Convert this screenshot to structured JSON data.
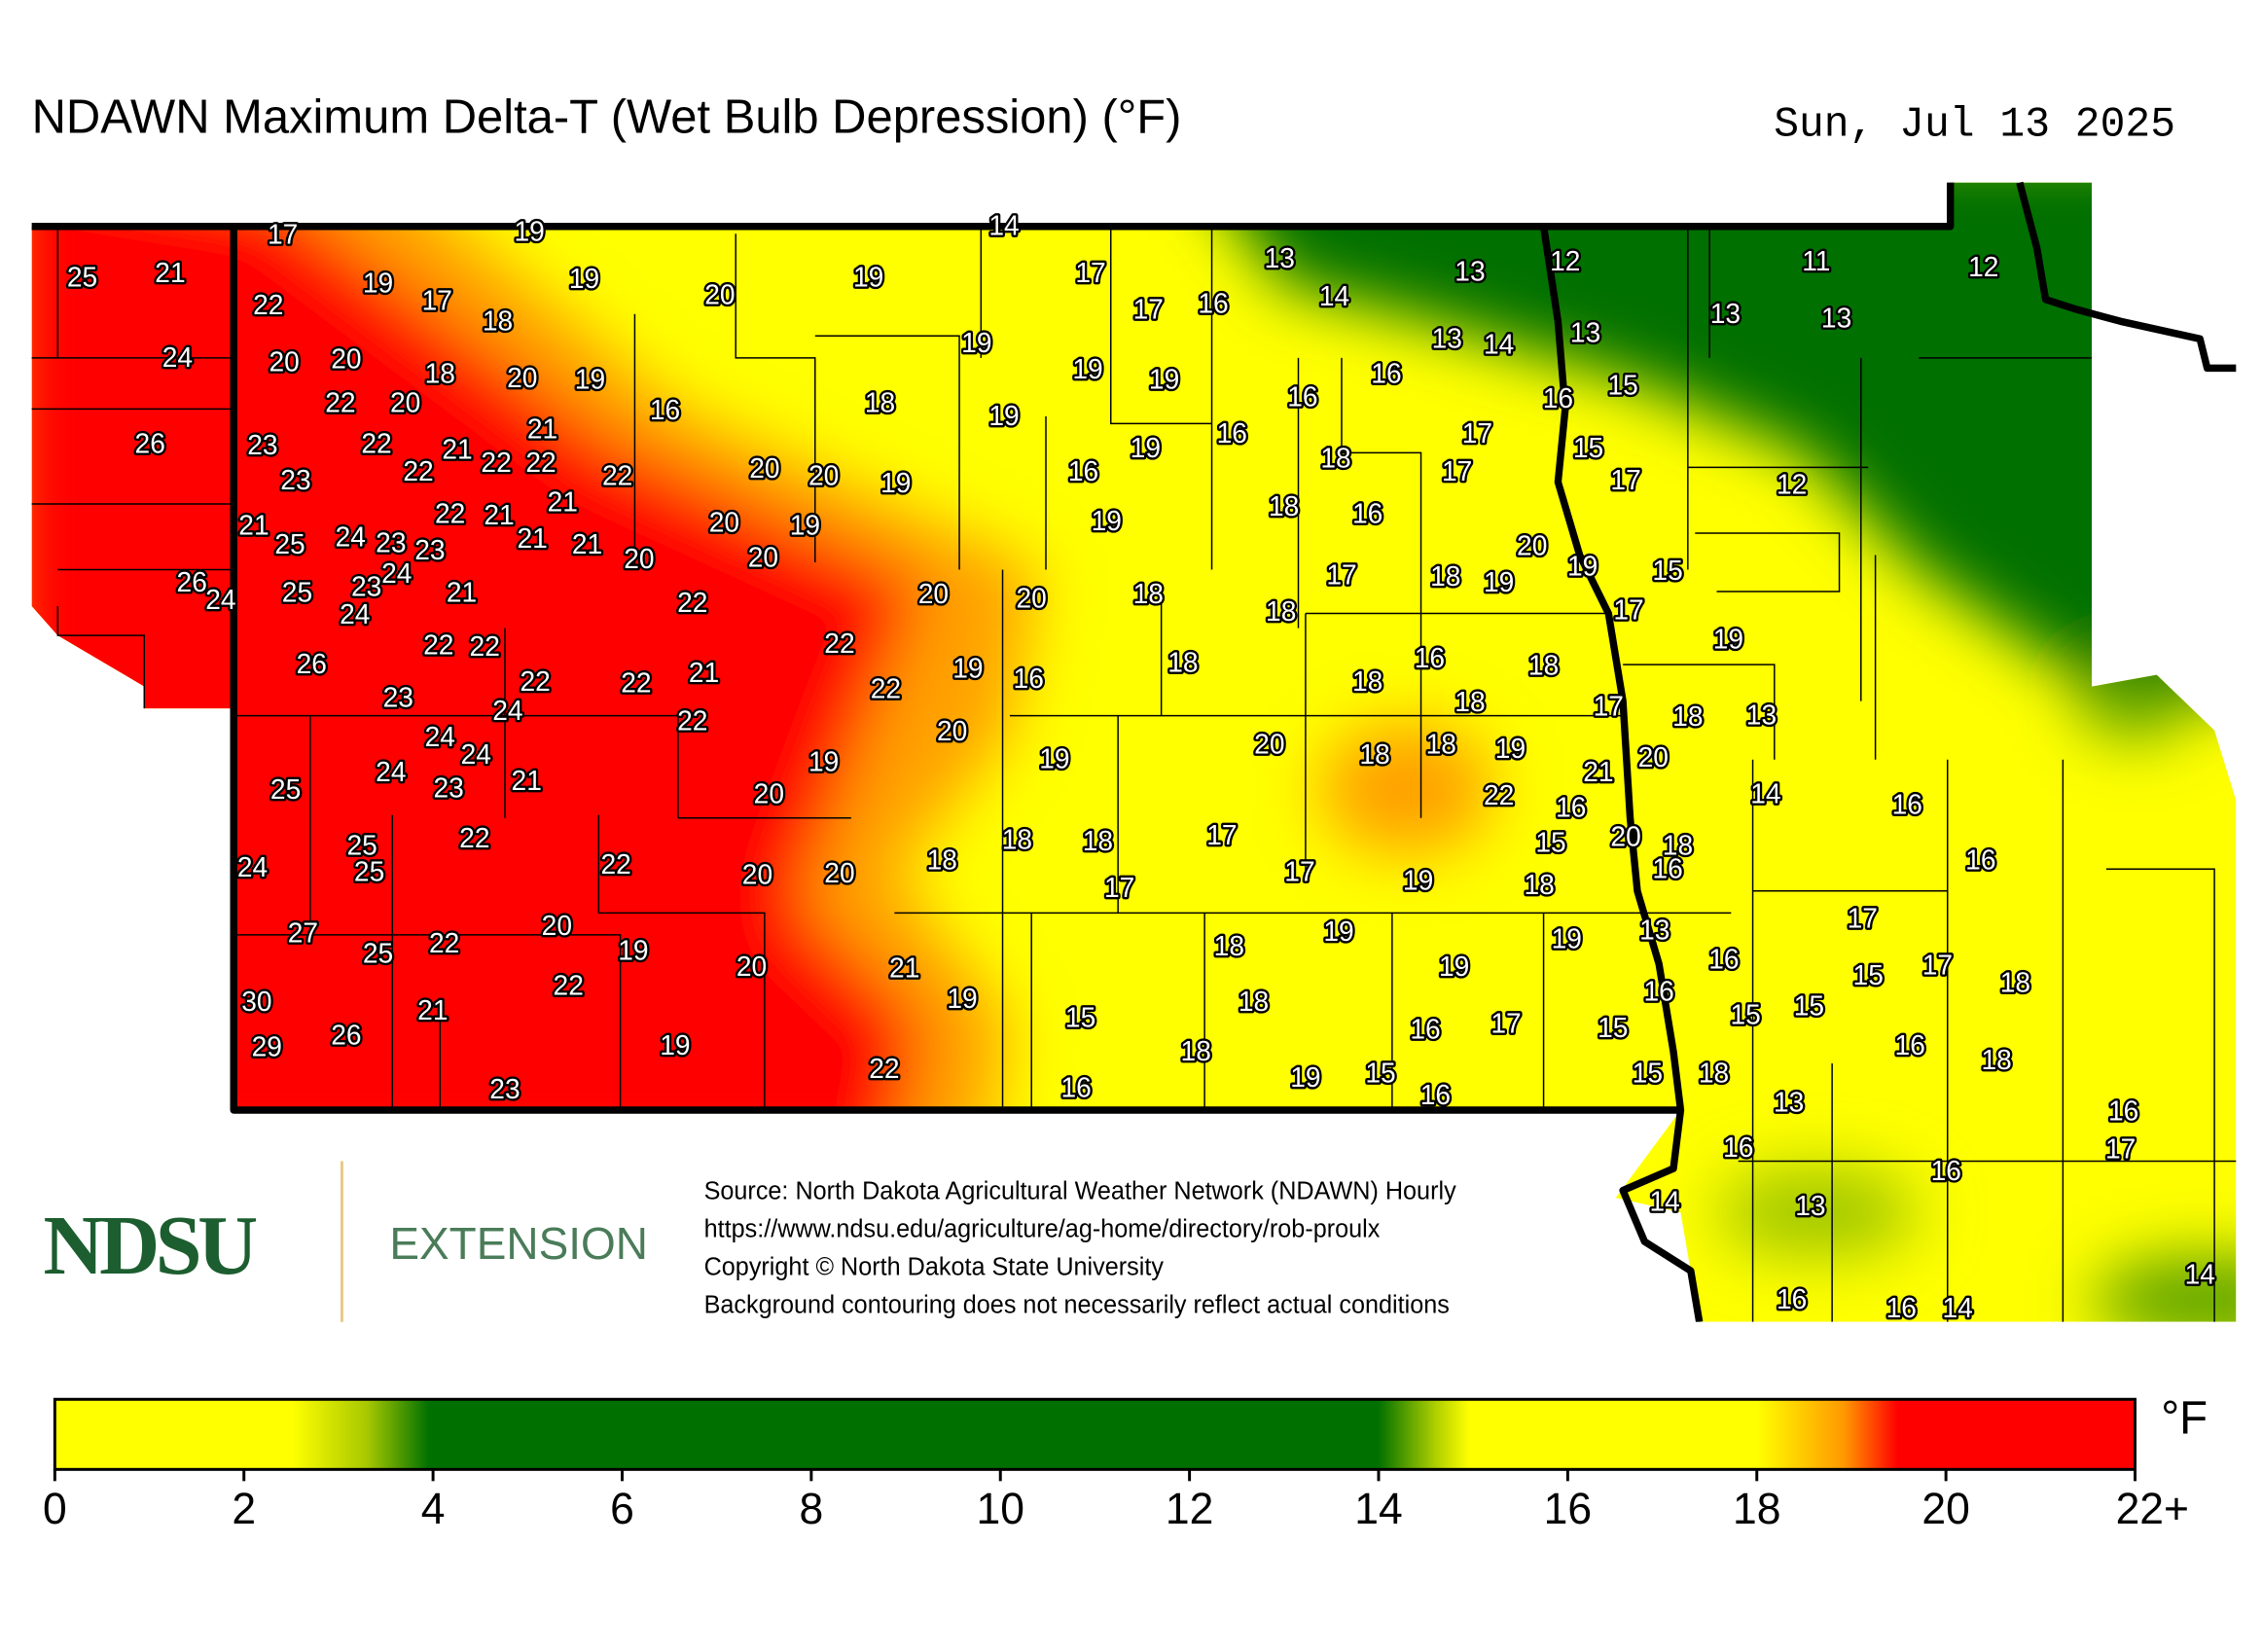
{
  "title": "NDAWN Maximum Delta-T (Wet Bulb Depression) (°F)",
  "date": "Sun, Jul 13 2025",
  "logo": {
    "name": "NDSU",
    "unit": "EXTENSION"
  },
  "source_lines": [
    "Source: North Dakota Agricultural Weather Network (NDAWN) Hourly",
    "https://www.ndsu.edu/agriculture/ag-home/directory/rob-proulx",
    "Copyright © North Dakota State University",
    "Background contouring does not necessarily reflect actual conditions"
  ],
  "stations": [
    17,
    19,
    14,
    25,
    21,
    19,
    17,
    22,
    18,
    19,
    20,
    19,
    17,
    17,
    16,
    13,
    14,
    13,
    12,
    11,
    12,
    13,
    13,
    13,
    14,
    13,
    24,
    20,
    20,
    18,
    20,
    19,
    19,
    19,
    19,
    16,
    16,
    16,
    15,
    22,
    20,
    16,
    18,
    19,
    26,
    23,
    22,
    21,
    22,
    22,
    21,
    22,
    22,
    20,
    20,
    19,
    19,
    16,
    17,
    15,
    18,
    16,
    17,
    17,
    12,
    23,
    21,
    22,
    21,
    21,
    20,
    19,
    19,
    18,
    16,
    25,
    24,
    23,
    23,
    21,
    21,
    20,
    20,
    20,
    19,
    15,
    26,
    24,
    25,
    23,
    24,
    24,
    21,
    22,
    20,
    20,
    18,
    17,
    18,
    19,
    18,
    17,
    19,
    26,
    22,
    22,
    22,
    22,
    22,
    21,
    19,
    16,
    18,
    16,
    18,
    18,
    23,
    24,
    22,
    22,
    20,
    18,
    17,
    18,
    13,
    24,
    24,
    21,
    24,
    19,
    19,
    20,
    18,
    18,
    19,
    21,
    20,
    25,
    23,
    20,
    22,
    16,
    14,
    16,
    25,
    25,
    22,
    24,
    22,
    20,
    20,
    18,
    18,
    18,
    17,
    17,
    19,
    18,
    15,
    20,
    18,
    16,
    16,
    17,
    27,
    25,
    22,
    20,
    19,
    20,
    21,
    18,
    19,
    19,
    19,
    13,
    17,
    16,
    17,
    15,
    18,
    22,
    30,
    21,
    19,
    18,
    15,
    16,
    15,
    15,
    29,
    26,
    19,
    18,
    16,
    17,
    15,
    16,
    18,
    23,
    22,
    16,
    19,
    15,
    16,
    15,
    18,
    13,
    16,
    16,
    17,
    16,
    14,
    13,
    14,
    16,
    16,
    14
  ],
  "colorbar": {
    "ticks": [
      0,
      2,
      4,
      6,
      8,
      10,
      12,
      14,
      16,
      18,
      20,
      {
        "value": 22,
        "label": "22+"
      }
    ],
    "range": [
      0,
      22
    ],
    "unit": "°F"
  }
}
